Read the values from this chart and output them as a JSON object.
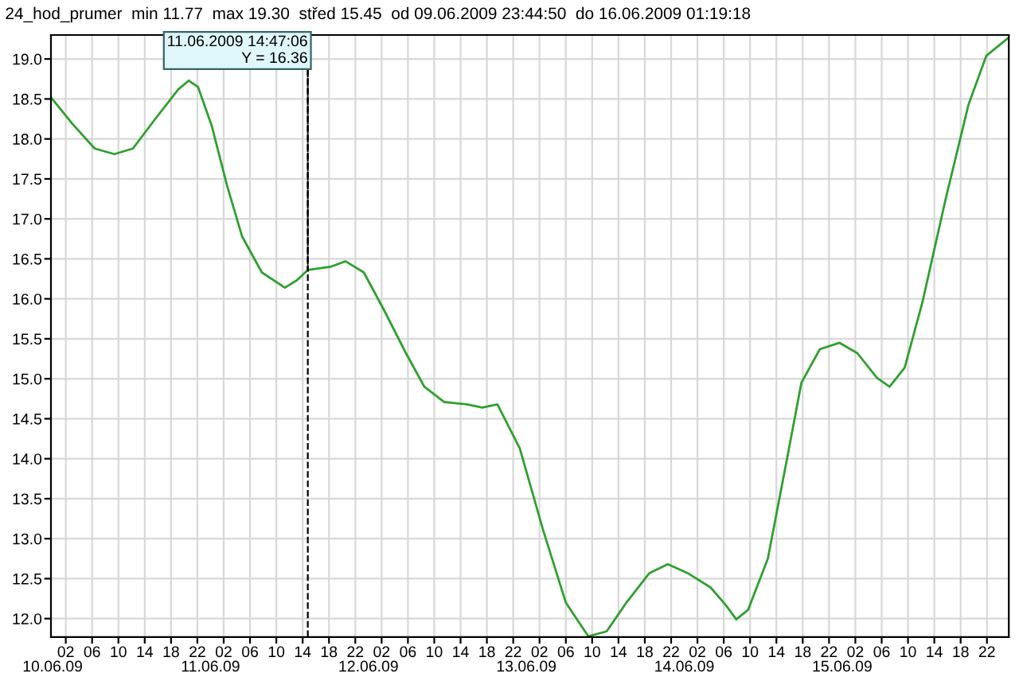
{
  "chart_data": {
    "type": "line",
    "title": "24_hod_prumer  min 11.77  max 19.30  střed 15.45  od 09.06.2009 23:44:50  do 16.06.2009 01:19:18",
    "x": [
      "2009-06-09T23:45",
      "2009-06-10T03:00",
      "2009-06-10T06:24",
      "2009-06-10T09:24",
      "2009-06-10T12:12",
      "2009-06-10T15:36",
      "2009-06-10T19:06",
      "2009-06-10T20:42",
      "2009-06-10T22:06",
      "2009-06-11T00:12",
      "2009-06-11T02:30",
      "2009-06-11T04:48",
      "2009-06-11T07:48",
      "2009-06-11T11:18",
      "2009-06-11T13:06",
      "2009-06-11T14:47",
      "2009-06-11T18:12",
      "2009-06-11T20:30",
      "2009-06-11T23:18",
      "2009-06-12T02:18",
      "2009-06-12T05:42",
      "2009-06-12T08:30",
      "2009-06-12T11:30",
      "2009-06-12T15:00",
      "2009-06-12T17:18",
      "2009-06-12T19:36",
      "2009-06-12T23:00",
      "2009-06-13T02:30",
      "2009-06-13T06:00",
      "2009-06-13T09:24",
      "2009-06-13T12:12",
      "2009-06-13T15:12",
      "2009-06-13T18:42",
      "2009-06-13T21:30",
      "2009-06-14T00:30",
      "2009-06-14T04:00",
      "2009-06-14T06:18",
      "2009-06-14T07:54",
      "2009-06-14T09:42",
      "2009-06-14T12:42",
      "2009-06-14T15:30",
      "2009-06-14T17:48",
      "2009-06-14T20:36",
      "2009-06-14T23:36",
      "2009-06-15T02:18",
      "2009-06-15T05:18",
      "2009-06-15T07:12",
      "2009-06-15T09:30",
      "2009-06-15T12:12",
      "2009-06-15T15:42",
      "2009-06-15T19:12",
      "2009-06-15T21:54",
      "2009-06-16T01:12"
    ],
    "series": [
      {
        "color": "#2ea02e",
        "values": [
          18.52,
          18.19,
          17.88,
          17.81,
          17.88,
          18.25,
          18.62,
          18.73,
          18.65,
          18.16,
          17.42,
          16.78,
          16.33,
          16.14,
          16.23,
          16.36,
          16.4,
          16.47,
          16.33,
          15.87,
          15.32,
          14.9,
          14.71,
          14.68,
          14.64,
          14.68,
          14.13,
          13.12,
          12.2,
          11.78,
          11.84,
          12.2,
          12.57,
          12.68,
          12.57,
          12.39,
          12.17,
          11.99,
          12.11,
          12.75,
          13.95,
          14.95,
          15.37,
          15.45,
          15.32,
          15.01,
          14.9,
          15.14,
          15.96,
          17.24,
          18.43,
          19.04,
          19.26
        ]
      }
    ],
    "xlim": [
      "2009-06-09T23:44:50",
      "2009-06-16T01:19:18"
    ],
    "x2lim": [
      "2009-06-09T23:44:50",
      "2009-06-16T01:19:18"
    ],
    "x2ticks": [
      {
        "value": "2009-06-10T00:00",
        "label": "10.06.09"
      },
      {
        "value": "2009-06-11T00:00",
        "label": "11.06.09"
      },
      {
        "value": "2009-06-12T00:00",
        "label": "12.06.09"
      },
      {
        "value": "2009-06-13T00:00",
        "label": "13.06.09"
      },
      {
        "value": "2009-06-14T00:00",
        "label": "14.06.09"
      },
      {
        "value": "2009-06-15T00:00",
        "label": "15.06.09"
      }
    ],
    "xticks": [
      {
        "value": "2009-06-10T02:00",
        "label": "02"
      },
      {
        "value": "2009-06-10T06:00",
        "label": "06"
      },
      {
        "value": "2009-06-10T10:00",
        "label": "10"
      },
      {
        "value": "2009-06-10T14:00",
        "label": "14"
      },
      {
        "value": "2009-06-10T18:00",
        "label": "18"
      },
      {
        "value": "2009-06-10T22:00",
        "label": "22"
      },
      {
        "value": "2009-06-11T02:00",
        "label": "02"
      },
      {
        "value": "2009-06-11T06:00",
        "label": "06"
      },
      {
        "value": "2009-06-11T10:00",
        "label": "10"
      },
      {
        "value": "2009-06-11T14:00",
        "label": "14"
      },
      {
        "value": "2009-06-11T18:00",
        "label": "18"
      },
      {
        "value": "2009-06-11T22:00",
        "label": "22"
      },
      {
        "value": "2009-06-12T02:00",
        "label": "02"
      },
      {
        "value": "2009-06-12T06:00",
        "label": "06"
      },
      {
        "value": "2009-06-12T10:00",
        "label": "10"
      },
      {
        "value": "2009-06-12T14:00",
        "label": "14"
      },
      {
        "value": "2009-06-12T18:00",
        "label": "18"
      },
      {
        "value": "2009-06-12T22:00",
        "label": "22"
      },
      {
        "value": "2009-06-13T02:00",
        "label": "02"
      },
      {
        "value": "2009-06-13T06:00",
        "label": "06"
      },
      {
        "value": "2009-06-13T10:00",
        "label": "10"
      },
      {
        "value": "2009-06-13T14:00",
        "label": "14"
      },
      {
        "value": "2009-06-13T18:00",
        "label": "18"
      },
      {
        "value": "2009-06-13T22:00",
        "label": "22"
      },
      {
        "value": "2009-06-14T02:00",
        "label": "02"
      },
      {
        "value": "2009-06-14T06:00",
        "label": "06"
      },
      {
        "value": "2009-06-14T10:00",
        "label": "10"
      },
      {
        "value": "2009-06-14T14:00",
        "label": "14"
      },
      {
        "value": "2009-06-14T18:00",
        "label": "18"
      },
      {
        "value": "2009-06-14T22:00",
        "label": "22"
      },
      {
        "value": "2009-06-15T02:00",
        "label": "02"
      },
      {
        "value": "2009-06-15T06:00",
        "label": "06"
      },
      {
        "value": "2009-06-15T10:00",
        "label": "10"
      },
      {
        "value": "2009-06-15T14:00",
        "label": "14"
      },
      {
        "value": "2009-06-15T18:00",
        "label": "18"
      },
      {
        "value": "2009-06-15T22:00",
        "label": "22"
      }
    ],
    "ylim": [
      11.77,
      19.3
    ],
    "yticks": [
      {
        "value": 12,
        "label": "12.0"
      },
      12.5,
      {
        "value": 13,
        "label": "13.0"
      },
      13.5,
      {
        "value": 14,
        "label": "14.0"
      },
      14.5,
      {
        "value": 15,
        "label": "15.0"
      },
      15.5,
      {
        "value": 16,
        "label": "16.0"
      },
      16.5,
      {
        "value": 17,
        "label": "17.0"
      },
      17.5,
      {
        "value": 18,
        "label": "18.0"
      },
      18.5,
      {
        "value": 19,
        "label": "19.0"
      }
    ],
    "grid": true,
    "ref_lines": [
      {
        "axis": "x",
        "value": "2009-06-11T14:47:06",
        "line_style": "dashed",
        "color": "#000000"
      }
    ],
    "annotations": [
      {
        "text": "11.06.2009 14:47:06\nY = 16.36",
        "x": "2009-06-11T14:47",
        "y": 16.36
      }
    ]
  }
}
